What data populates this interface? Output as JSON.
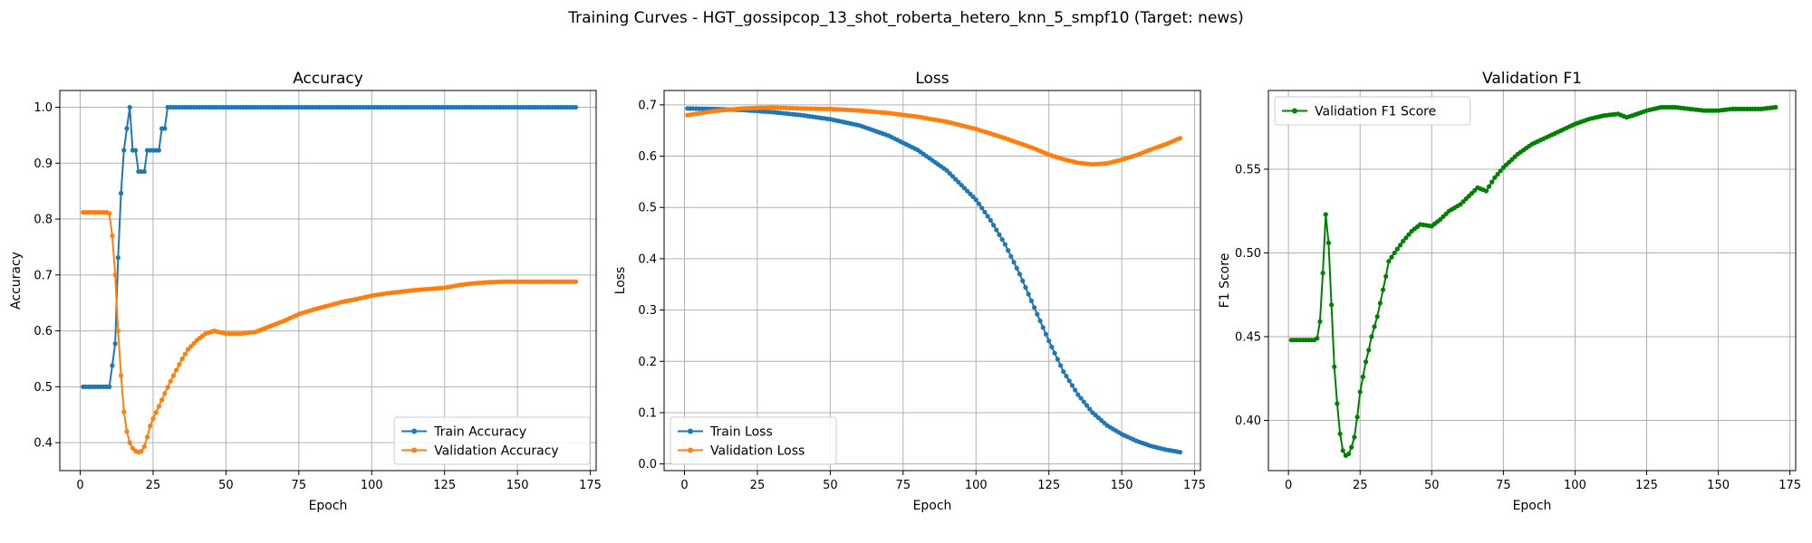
{
  "suptitle": "Training Curves - HGT_gossipcop_13_shot_roberta_hetero_knn_5_smpf10 (Target: news)",
  "colors": {
    "train": "#1f77b4",
    "val": "#ff7f0e",
    "f1": "#008000",
    "grid": "#b0b0b0"
  },
  "chart_data": [
    {
      "type": "line",
      "title": "Accuracy",
      "xlabel": "Epoch",
      "ylabel": "Accuracy",
      "xlim": [
        -7,
        177
      ],
      "ylim": [
        0.35,
        1.03
      ],
      "xticks": [
        0,
        25,
        50,
        75,
        100,
        125,
        150,
        175
      ],
      "yticks": [
        0.4,
        0.5,
        0.6,
        0.7,
        0.8,
        0.9,
        1.0
      ],
      "ytick_labels": [
        "0.4",
        "0.5",
        "0.6",
        "0.7",
        "0.8",
        "0.9",
        "1.0"
      ],
      "grid": true,
      "legend": "lower-right",
      "series": [
        {
          "name": "Train Accuracy",
          "color": "#1f77b4",
          "points": [
            [
              1,
              0.5
            ],
            [
              2,
              0.5
            ],
            [
              3,
              0.5
            ],
            [
              4,
              0.5
            ],
            [
              5,
              0.5
            ],
            [
              6,
              0.5
            ],
            [
              7,
              0.5
            ],
            [
              8,
              0.5
            ],
            [
              9,
              0.5
            ],
            [
              10,
              0.5
            ],
            [
              11,
              0.538
            ],
            [
              12,
              0.577
            ],
            [
              13,
              0.731
            ],
            [
              14,
              0.846
            ],
            [
              15,
              0.923
            ],
            [
              16,
              0.962
            ],
            [
              17,
              1.0
            ],
            [
              18,
              0.923
            ],
            [
              19,
              0.923
            ],
            [
              20,
              0.885
            ],
            [
              21,
              0.885
            ],
            [
              22,
              0.885
            ],
            [
              23,
              0.923
            ],
            [
              24,
              0.923
            ],
            [
              25,
              0.923
            ],
            [
              26,
              0.923
            ],
            [
              27,
              0.923
            ],
            [
              28,
              0.962
            ],
            [
              29,
              0.962
            ],
            [
              30,
              1.0
            ],
            [
              170,
              1.0
            ]
          ]
        },
        {
          "name": "Validation Accuracy",
          "color": "#ff7f0e",
          "points": [
            [
              1,
              0.812
            ],
            [
              9,
              0.812
            ],
            [
              10,
              0.81
            ],
            [
              11,
              0.77
            ],
            [
              12,
              0.7
            ],
            [
              13,
              0.6
            ],
            [
              14,
              0.52
            ],
            [
              15,
              0.455
            ],
            [
              16,
              0.42
            ],
            [
              17,
              0.4
            ],
            [
              18,
              0.39
            ],
            [
              19,
              0.385
            ],
            [
              20,
              0.383
            ],
            [
              21,
              0.385
            ],
            [
              22,
              0.393
            ],
            [
              23,
              0.41
            ],
            [
              24,
              0.43
            ],
            [
              25,
              0.443
            ],
            [
              27,
              0.465
            ],
            [
              29,
              0.488
            ],
            [
              31,
              0.51
            ],
            [
              33,
              0.53
            ],
            [
              35,
              0.55
            ],
            [
              37,
              0.567
            ],
            [
              40,
              0.583
            ],
            [
              43,
              0.595
            ],
            [
              46,
              0.6
            ],
            [
              50,
              0.595
            ],
            [
              55,
              0.595
            ],
            [
              60,
              0.598
            ],
            [
              65,
              0.608
            ],
            [
              70,
              0.618
            ],
            [
              75,
              0.63
            ],
            [
              80,
              0.638
            ],
            [
              85,
              0.645
            ],
            [
              90,
              0.652
            ],
            [
              95,
              0.657
            ],
            [
              100,
              0.663
            ],
            [
              105,
              0.667
            ],
            [
              110,
              0.67
            ],
            [
              115,
              0.673
            ],
            [
              120,
              0.675
            ],
            [
              125,
              0.677
            ],
            [
              130,
              0.682
            ],
            [
              135,
              0.685
            ],
            [
              140,
              0.687
            ],
            [
              145,
              0.688
            ],
            [
              150,
              0.688
            ],
            [
              160,
              0.688
            ],
            [
              170,
              0.688
            ]
          ]
        }
      ]
    },
    {
      "type": "line",
      "title": "Loss",
      "xlabel": "Epoch",
      "ylabel": "Loss",
      "xlim": [
        -7,
        177
      ],
      "ylim": [
        -0.013,
        0.728
      ],
      "xticks": [
        0,
        25,
        50,
        75,
        100,
        125,
        150,
        175
      ],
      "yticks": [
        0.0,
        0.1,
        0.2,
        0.3,
        0.4,
        0.5,
        0.6,
        0.7
      ],
      "ytick_labels": [
        "0.0",
        "0.1",
        "0.2",
        "0.3",
        "0.4",
        "0.5",
        "0.6",
        "0.7"
      ],
      "grid": true,
      "legend": "lower-left",
      "series": [
        {
          "name": "Train Loss",
          "color": "#1f77b4",
          "points": [
            [
              1,
              0.693
            ],
            [
              10,
              0.692
            ],
            [
              20,
              0.69
            ],
            [
              30,
              0.686
            ],
            [
              40,
              0.68
            ],
            [
              50,
              0.672
            ],
            [
              60,
              0.66
            ],
            [
              70,
              0.64
            ],
            [
              80,
              0.612
            ],
            [
              90,
              0.572
            ],
            [
              100,
              0.515
            ],
            [
              105,
              0.475
            ],
            [
              110,
              0.428
            ],
            [
              115,
              0.37
            ],
            [
              120,
              0.305
            ],
            [
              125,
              0.24
            ],
            [
              130,
              0.18
            ],
            [
              135,
              0.135
            ],
            [
              140,
              0.1
            ],
            [
              145,
              0.075
            ],
            [
              150,
              0.058
            ],
            [
              155,
              0.045
            ],
            [
              160,
              0.035
            ],
            [
              165,
              0.028
            ],
            [
              170,
              0.023
            ]
          ]
        },
        {
          "name": "Validation Loss",
          "color": "#ff7f0e",
          "points": [
            [
              1,
              0.68
            ],
            [
              10,
              0.688
            ],
            [
              20,
              0.693
            ],
            [
              30,
              0.695
            ],
            [
              40,
              0.693
            ],
            [
              50,
              0.692
            ],
            [
              60,
              0.689
            ],
            [
              70,
              0.684
            ],
            [
              80,
              0.677
            ],
            [
              90,
              0.667
            ],
            [
              100,
              0.653
            ],
            [
              110,
              0.635
            ],
            [
              120,
              0.615
            ],
            [
              125,
              0.603
            ],
            [
              130,
              0.594
            ],
            [
              135,
              0.587
            ],
            [
              140,
              0.584
            ],
            [
              145,
              0.586
            ],
            [
              150,
              0.593
            ],
            [
              155,
              0.602
            ],
            [
              160,
              0.613
            ],
            [
              165,
              0.623
            ],
            [
              170,
              0.635
            ]
          ]
        }
      ]
    },
    {
      "type": "line",
      "title": "Validation F1",
      "xlabel": "Epoch",
      "ylabel": "F1 Score",
      "xlim": [
        -7,
        177
      ],
      "ylim": [
        0.37,
        0.597
      ],
      "xticks": [
        0,
        25,
        50,
        75,
        100,
        125,
        150,
        175
      ],
      "yticks": [
        0.4,
        0.45,
        0.5,
        0.55
      ],
      "ytick_labels": [
        "0.40",
        "0.45",
        "0.50",
        "0.55"
      ],
      "grid": true,
      "legend": "upper-left",
      "series": [
        {
          "name": "Validation F1 Score",
          "color": "#008000",
          "points": [
            [
              1,
              0.448
            ],
            [
              2,
              0.448
            ],
            [
              3,
              0.448
            ],
            [
              4,
              0.448
            ],
            [
              5,
              0.448
            ],
            [
              6,
              0.448
            ],
            [
              7,
              0.448
            ],
            [
              8,
              0.448
            ],
            [
              9,
              0.448
            ],
            [
              10,
              0.449
            ],
            [
              11,
              0.459
            ],
            [
              12,
              0.488
            ],
            [
              13,
              0.523
            ],
            [
              14,
              0.506
            ],
            [
              15,
              0.469
            ],
            [
              16,
              0.432
            ],
            [
              17,
              0.41
            ],
            [
              18,
              0.392
            ],
            [
              19,
              0.382
            ],
            [
              20,
              0.379
            ],
            [
              21,
              0.38
            ],
            [
              22,
              0.384
            ],
            [
              23,
              0.39
            ],
            [
              24,
              0.402
            ],
            [
              25,
              0.417
            ],
            [
              26,
              0.426
            ],
            [
              27,
              0.435
            ],
            [
              28,
              0.442
            ],
            [
              29,
              0.45
            ],
            [
              30,
              0.456
            ],
            [
              31,
              0.462
            ],
            [
              32,
              0.47
            ],
            [
              33,
              0.478
            ],
            [
              34,
              0.486
            ],
            [
              35,
              0.495
            ],
            [
              37,
              0.5
            ],
            [
              40,
              0.507
            ],
            [
              43,
              0.513
            ],
            [
              46,
              0.517
            ],
            [
              50,
              0.516
            ],
            [
              53,
              0.52
            ],
            [
              56,
              0.525
            ],
            [
              60,
              0.529
            ],
            [
              63,
              0.534
            ],
            [
              66,
              0.539
            ],
            [
              69,
              0.537
            ],
            [
              72,
              0.545
            ],
            [
              75,
              0.551
            ],
            [
              80,
              0.559
            ],
            [
              85,
              0.565
            ],
            [
              90,
              0.569
            ],
            [
              95,
              0.573
            ],
            [
              100,
              0.577
            ],
            [
              105,
              0.58
            ],
            [
              110,
              0.582
            ],
            [
              115,
              0.583
            ],
            [
              118,
              0.581
            ],
            [
              120,
              0.582
            ],
            [
              125,
              0.585
            ],
            [
              130,
              0.587
            ],
            [
              135,
              0.587
            ],
            [
              140,
              0.586
            ],
            [
              145,
              0.585
            ],
            [
              150,
              0.585
            ],
            [
              155,
              0.586
            ],
            [
              160,
              0.586
            ],
            [
              165,
              0.586
            ],
            [
              170,
              0.587
            ]
          ]
        }
      ]
    }
  ]
}
